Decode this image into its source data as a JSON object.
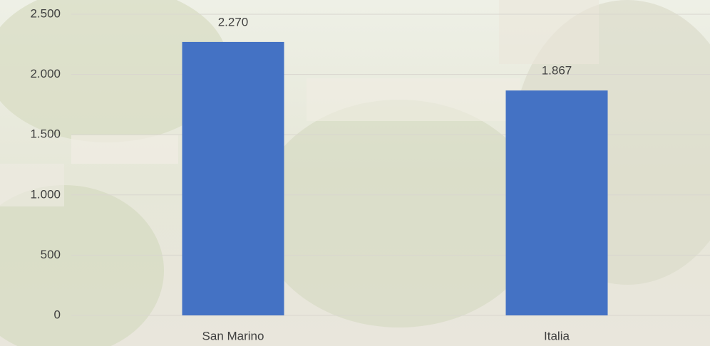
{
  "chart_data": {
    "type": "bar",
    "categories": [
      "San Marino",
      "Italia"
    ],
    "values": [
      2270,
      1867
    ],
    "value_labels": [
      "2.270",
      "1.867"
    ],
    "color": "#4472c4",
    "ylim": [
      0,
      2500
    ],
    "yticks": [
      0,
      500,
      {
        "value": 1000,
        "label": "1.000"
      },
      {
        "value": 1500,
        "label": "1.500"
      },
      {
        "value": 2000,
        "label": "2.000"
      },
      {
        "value": 2500,
        "label": "2.500"
      }
    ],
    "grid": true
  }
}
